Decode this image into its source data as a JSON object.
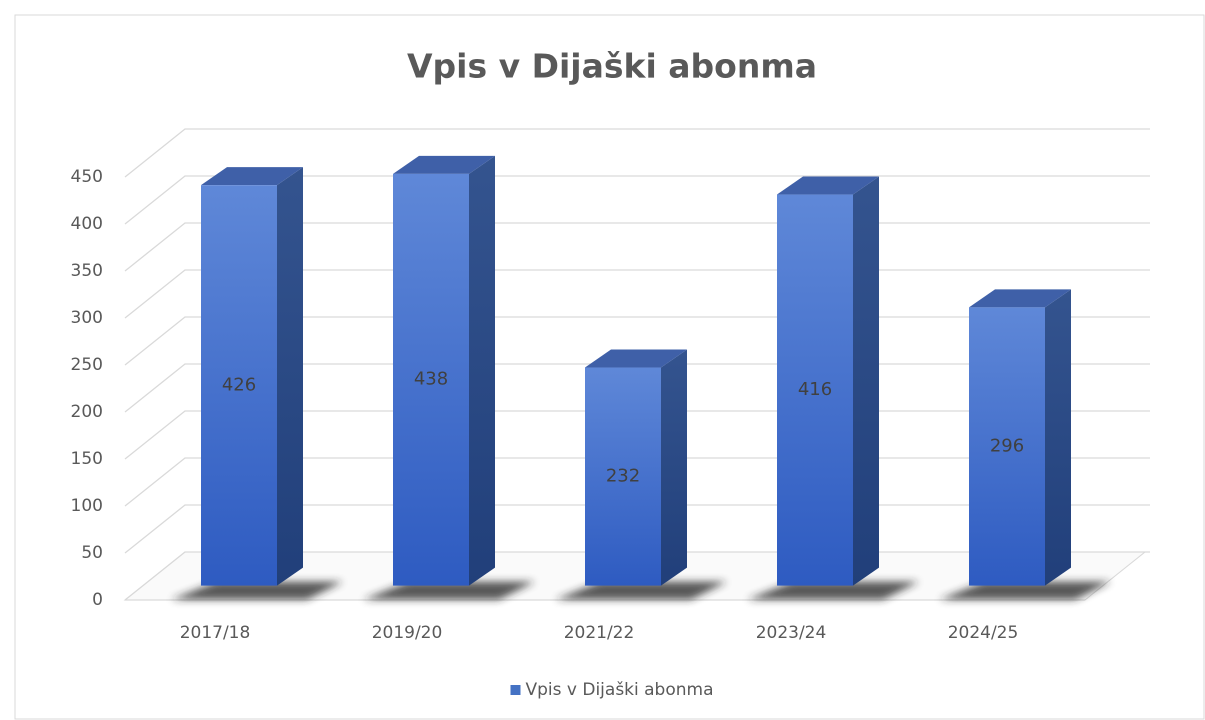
{
  "chart_data": {
    "type": "bar3d",
    "title": "Vpis v Dijaški abonma",
    "categories": [
      "2017/18",
      "2019/20",
      "2021/22",
      "2023/24",
      "2024/25"
    ],
    "series": [
      {
        "name": "Vpis v Dijaški abonma",
        "color": "#4472c4",
        "values": [
          426,
          438,
          232,
          416,
          296
        ]
      }
    ],
    "ylim": [
      0,
      450
    ],
    "yticks": [
      0,
      50,
      100,
      150,
      200,
      250,
      300,
      350,
      400,
      450
    ],
    "grid": true,
    "legend": "bottom",
    "data_labels": true
  }
}
